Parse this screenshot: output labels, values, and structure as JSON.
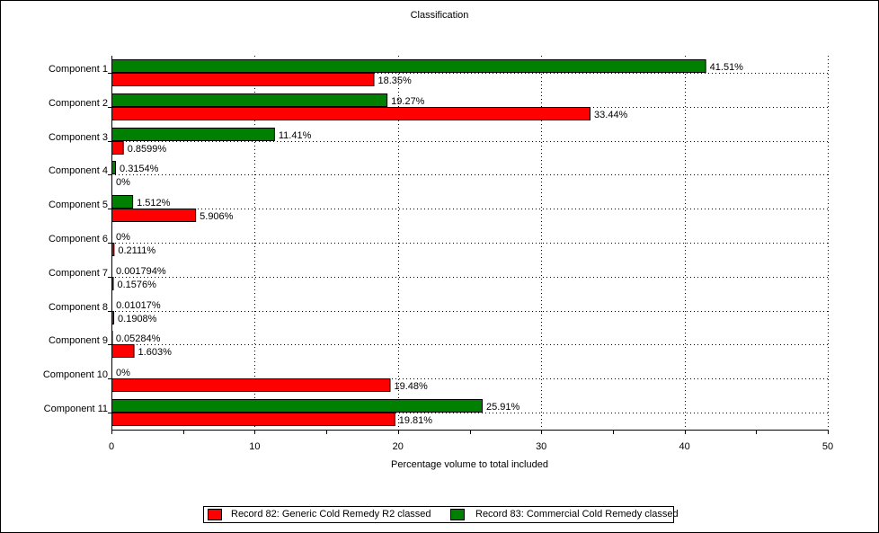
{
  "chart_data": {
    "type": "bar",
    "orientation": "horizontal",
    "title": "Classification",
    "xlabel": "Percentage volume to total included",
    "ylabel": "",
    "xlim": [
      0,
      50
    ],
    "x_ticks": [
      0,
      10,
      20,
      30,
      40,
      50
    ],
    "grid": true,
    "legend_position": "bottom",
    "categories": [
      "Component 1",
      "Component 2",
      "Component 3",
      "Component 4",
      "Component 5",
      "Component 6",
      "Component 7",
      "Component 8",
      "Component 9",
      "Component 10",
      "Component 11"
    ],
    "series": [
      {
        "name": "Record 82: Generic Cold Remedy R2 classed",
        "color": "#ff0000",
        "values": [
          18.35,
          33.44,
          0.8599,
          0,
          5.906,
          0.2111,
          0.1576,
          0.1908,
          1.603,
          19.48,
          19.81
        ],
        "labels": [
          "18.35%",
          "33.44%",
          "0.8599%",
          "0%",
          "5.906%",
          "0.2111%",
          "0.1576%",
          "0.1908%",
          "1.603%",
          "19.48%",
          "19.81%"
        ]
      },
      {
        "name": "Record 83: Commercial Cold Remedy classed",
        "color": "#008000",
        "values": [
          41.51,
          19.27,
          11.41,
          0.3154,
          1.512,
          0,
          0.001794,
          0.01017,
          0.05284,
          0,
          25.91
        ],
        "labels": [
          "41.51%",
          "19.27%",
          "11.41%",
          "0.3154%",
          "1.512%",
          "0%",
          "0.001794%",
          "0.01017%",
          "0.05284%",
          "0%",
          "25.91%"
        ]
      }
    ]
  }
}
